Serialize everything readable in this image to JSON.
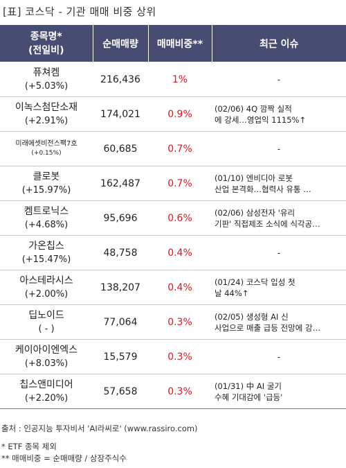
{
  "title": "[표] 코스닥 - 기관 매매 비중 상위",
  "headers": {
    "name_line1": "종목명*",
    "name_line2": "(전일비)",
    "volume": "순매매량",
    "ratio": "매매비중**",
    "issue": "최근 이슈"
  },
  "rows": [
    {
      "name": "퓨쳐켐",
      "change": "(+5.03%)",
      "volume": "216,436",
      "ratio": "1%",
      "issue1": "-",
      "issue2": ""
    },
    {
      "name": "이녹스첨단소재",
      "change": "(+2.91%)",
      "volume": "174,021",
      "ratio": "0.9%",
      "issue1": "(02/06) 4Q 깜짝 실적",
      "issue2": "에 강세…영업익 1115%↑"
    },
    {
      "name": "미래에셋비전스팩7호",
      "change": "(+0.15%)",
      "volume": "60,685",
      "ratio": "0.7%",
      "issue1": "-",
      "issue2": ""
    },
    {
      "name": "클로봇",
      "change": "(+15.97%)",
      "volume": "162,487",
      "ratio": "0.7%",
      "issue1": "(01/10) 엔비디아 로봇",
      "issue2": "산업 본격화…협력사 유통 …"
    },
    {
      "name": "켐트로닉스",
      "change": "(+4.68%)",
      "volume": "95,696",
      "ratio": "0.6%",
      "issue1": "(02/06) 삼성전자 '유리",
      "issue2": "기판' 직접제조 소식에 식각공…"
    },
    {
      "name": "가온칩스",
      "change": "(+15.47%)",
      "volume": "48,758",
      "ratio": "0.4%",
      "issue1": "-",
      "issue2": ""
    },
    {
      "name": "아스테라시스",
      "change": "(+2.00%)",
      "volume": "138,207",
      "ratio": "0.4%",
      "issue1": "(01/24) 코스닥 입성 첫",
      "issue2": "날 44%↑"
    },
    {
      "name": "딥노이드",
      "change": "( - )",
      "volume": "77,064",
      "ratio": "0.3%",
      "issue1": "(02/05) 생성형 AI 신",
      "issue2": "사업으로 매출 급등 전망에 강…"
    },
    {
      "name": "케이아이엔엑스",
      "change": "(+8.03%)",
      "volume": "15,579",
      "ratio": "0.3%",
      "issue1": "-",
      "issue2": ""
    },
    {
      "name": "칩스앤미디어",
      "change": "(+2.20%)",
      "volume": "57,658",
      "ratio": "0.3%",
      "issue1": "(01/31) 中 AI 굴기",
      "issue2": "수혜 기대감에 '급등'"
    }
  ],
  "footer": {
    "source": "출처 : 인공지능 투자비서 'AI라씨로' (www.rassiro.com)",
    "note1": "* ETF 종목 제외",
    "note2": "** 매매비중 = 순매매량 / 상장주식수"
  },
  "colors": {
    "header_bg": "#474c73",
    "ratio_text": "#e0141e"
  }
}
